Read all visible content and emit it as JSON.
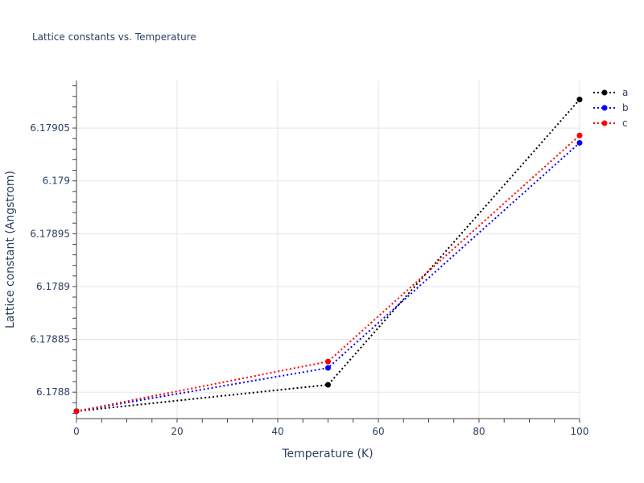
{
  "chart_data": {
    "type": "line",
    "title": "Lattice constants vs. Temperature",
    "xlabel": "Temperature (K)",
    "ylabel": "Lattice constant (Angstrom)",
    "xlim": [
      0,
      100
    ],
    "ylim": [
      6.178775,
      6.179095
    ],
    "x_ticks": [
      0,
      20,
      40,
      60,
      80,
      100
    ],
    "x_tick_labels": [
      "0",
      "20",
      "40",
      "60",
      "80",
      "100"
    ],
    "y_ticks": [
      6.1788,
      6.17885,
      6.1789,
      6.17895,
      6.179,
      6.17905
    ],
    "y_tick_labels": [
      "6.1788",
      "6.17885",
      "6.1789",
      "6.17895",
      "6.179",
      "6.17905"
    ],
    "grid": true,
    "legend_position": "top-right",
    "line_style": "dotted",
    "series": [
      {
        "name": "a",
        "color": "#000000",
        "x": [
          0,
          50,
          100
        ],
        "y": [
          6.178782,
          6.178807,
          6.179077
        ]
      },
      {
        "name": "b",
        "color": "#0000ff",
        "x": [
          0,
          50,
          100
        ],
        "y": [
          6.178782,
          6.178823,
          6.179036
        ]
      },
      {
        "name": "c",
        "color": "#ff0000",
        "x": [
          0,
          50,
          100
        ],
        "y": [
          6.178782,
          6.178829,
          6.179043
        ]
      }
    ]
  }
}
